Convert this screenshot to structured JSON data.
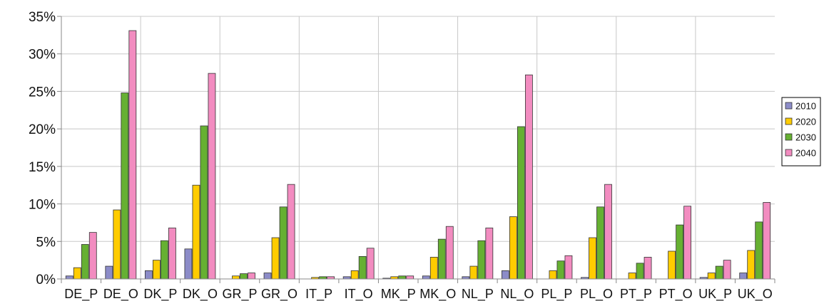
{
  "chart_data": {
    "type": "bar",
    "categories": [
      "DE_P",
      "DE_O",
      "DK_P",
      "DK_O",
      "GR_P",
      "GR_O",
      "IT_P",
      "IT_O",
      "MK_P",
      "MK_O",
      "NL_P",
      "NL_O",
      "PL_P",
      "PL_O",
      "PT_P",
      "PT_O",
      "UK_P",
      "UK_O"
    ],
    "series": [
      {
        "name": "2010",
        "color": "#8c8cc8",
        "values": [
          0.4,
          1.7,
          1.1,
          4.0,
          0.0,
          0.8,
          0.0,
          0.3,
          0.1,
          0.4,
          0.3,
          1.1,
          0.0,
          0.2,
          0.0,
          0.0,
          0.2,
          0.8
        ]
      },
      {
        "name": "2020",
        "color": "#ffcc00",
        "values": [
          1.5,
          9.2,
          2.5,
          12.5,
          0.4,
          5.5,
          0.2,
          1.1,
          0.3,
          2.9,
          1.7,
          8.3,
          1.1,
          5.5,
          0.8,
          3.7,
          0.8,
          3.8
        ]
      },
      {
        "name": "2030",
        "color": "#66b032",
        "values": [
          4.6,
          24.8,
          5.1,
          20.4,
          0.7,
          9.6,
          0.3,
          3.0,
          0.4,
          5.3,
          5.1,
          20.3,
          2.4,
          9.6,
          2.1,
          7.2,
          1.7,
          7.6
        ]
      },
      {
        "name": "2040",
        "color": "#f28cc0",
        "values": [
          6.2,
          33.1,
          6.8,
          27.4,
          0.8,
          12.6,
          0.3,
          4.1,
          0.4,
          7.0,
          6.8,
          27.2,
          3.1,
          12.6,
          2.9,
          9.7,
          2.5,
          10.2
        ]
      }
    ],
    "yticks": [
      "0%",
      "5%",
      "10%",
      "15%",
      "20%",
      "25%",
      "30%",
      "35%"
    ],
    "ylim": [
      0,
      35
    ],
    "y_unit": "%",
    "grid": true,
    "legend_position": "right"
  }
}
